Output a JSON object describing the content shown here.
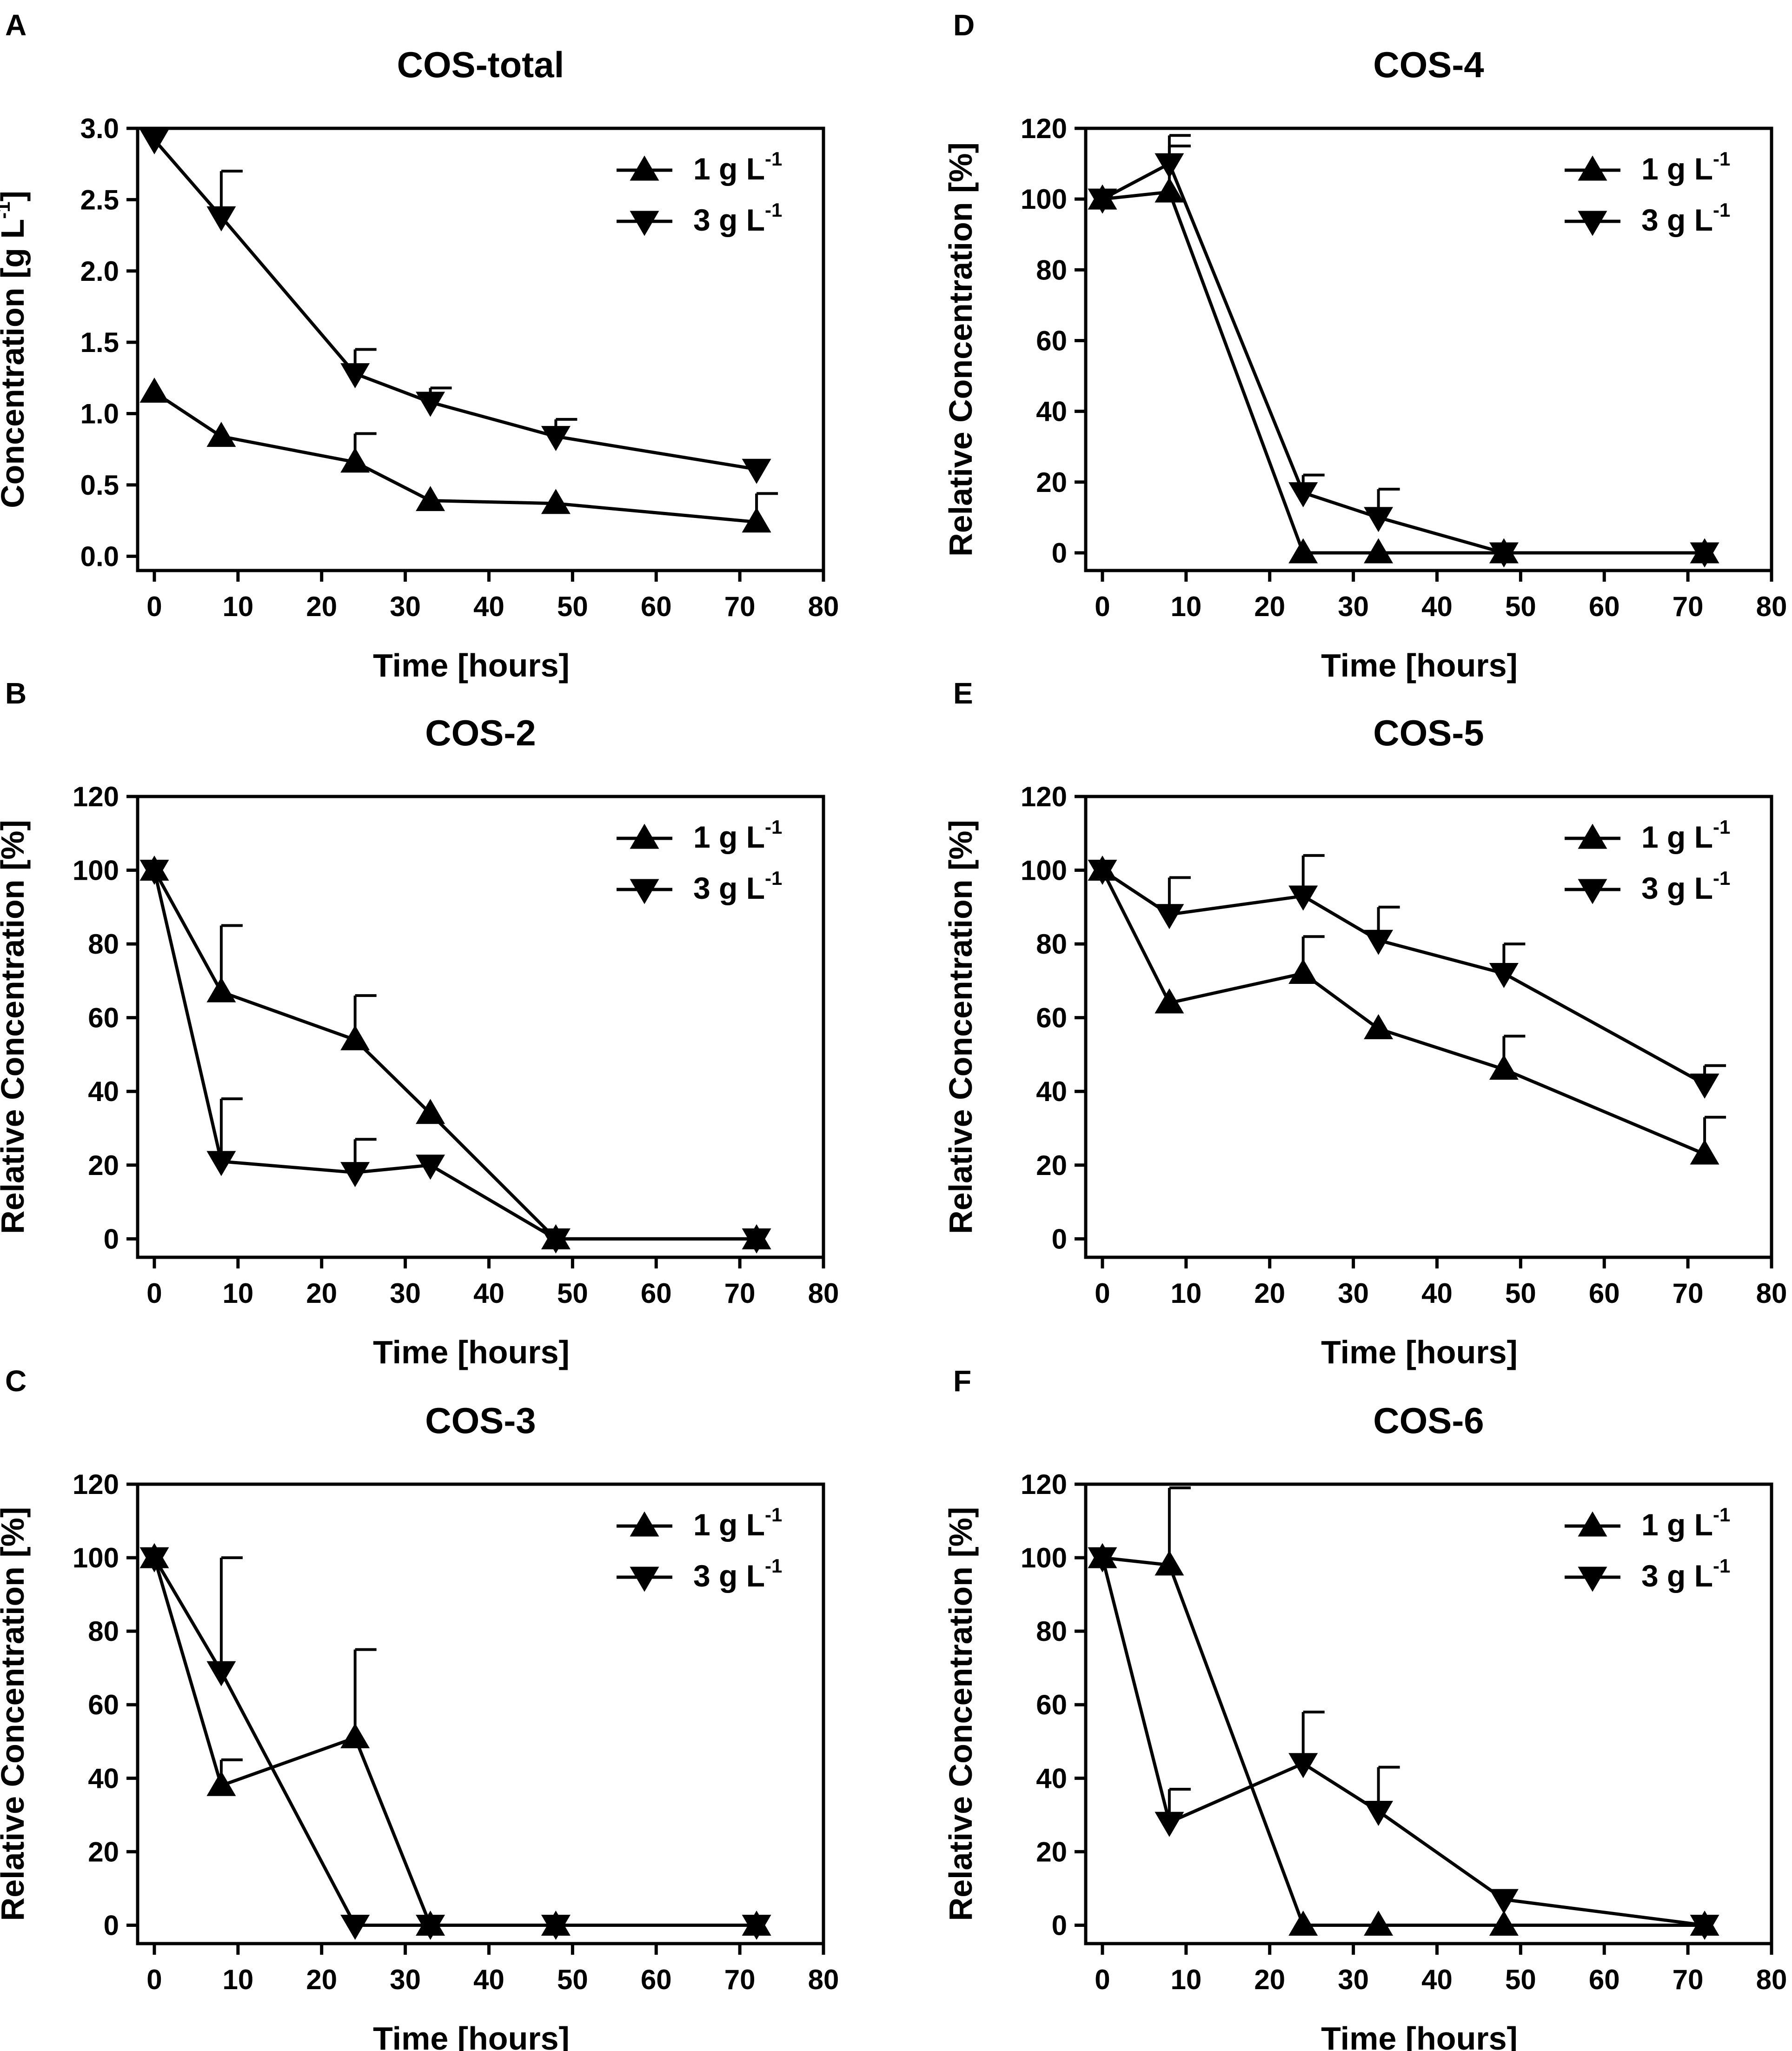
{
  "figure": {
    "series_names": [
      "1 g L",
      "3 g L"
    ],
    "series_sup": "-1",
    "colors": {
      "axis": "#000000",
      "background": "#ffffff"
    },
    "markers": [
      "triangle-up",
      "triangle-down"
    ]
  },
  "chart_data": [
    {
      "letter": "A",
      "type": "line",
      "title": "COS-total",
      "xlabel": "Time [hours]",
      "ylabel_main": "Concentration [g L",
      "ylabel_sup": "-1",
      "ylabel_end": "]",
      "xlim": [
        -2,
        80
      ],
      "ylim": [
        -0.1,
        3.0
      ],
      "xticks": [
        0,
        10,
        20,
        30,
        40,
        50,
        60,
        70,
        80
      ],
      "xtick_labels": [
        "0",
        "10",
        "20",
        "30",
        "40",
        "50",
        "60",
        "70",
        "80"
      ],
      "yticks": [
        0.0,
        0.5,
        1.0,
        1.5,
        2.0,
        2.5,
        3.0
      ],
      "ytick_labels": [
        "0.0",
        "0.5",
        "1.0",
        "1.5",
        "2.0",
        "2.5",
        "3.0"
      ],
      "series": [
        {
          "name": "1 g L-1",
          "marker": "triangle-up",
          "x": [
            0,
            8,
            24,
            33,
            48,
            72
          ],
          "y": [
            1.15,
            0.84,
            0.66,
            0.39,
            0.37,
            0.24
          ],
          "err": [
            0,
            0,
            0.2,
            0,
            0,
            0.2
          ]
        },
        {
          "name": "3 g L-1",
          "marker": "triangle-down",
          "x": [
            0,
            8,
            24,
            33,
            48,
            72
          ],
          "y": [
            2.92,
            2.38,
            1.28,
            1.08,
            0.84,
            0.61
          ],
          "err": [
            0,
            0.32,
            0.17,
            0.1,
            0.12,
            0
          ]
        }
      ]
    },
    {
      "letter": "B",
      "type": "line",
      "title": "COS-2",
      "xlabel": "Time [hours]",
      "ylabel_main": "Relative Concentration [%]",
      "ylabel_sup": "",
      "ylabel_end": "",
      "xlim": [
        -2,
        80
      ],
      "ylim": [
        -5,
        120
      ],
      "xticks": [
        0,
        10,
        20,
        30,
        40,
        50,
        60,
        70,
        80
      ],
      "xtick_labels": [
        "0",
        "10",
        "20",
        "30",
        "40",
        "50",
        "60",
        "70",
        "80"
      ],
      "yticks": [
        0,
        20,
        40,
        60,
        80,
        100,
        120
      ],
      "ytick_labels": [
        "0",
        "20",
        "40",
        "60",
        "80",
        "100",
        "120"
      ],
      "series": [
        {
          "name": "1 g L-1",
          "marker": "triangle-up",
          "x": [
            0,
            8,
            24,
            33,
            48,
            72
          ],
          "y": [
            100,
            67,
            54,
            34,
            0,
            0
          ],
          "err": [
            0,
            18,
            12,
            0,
            0,
            0
          ]
        },
        {
          "name": "3 g L-1",
          "marker": "triangle-down",
          "x": [
            0,
            8,
            24,
            33,
            48,
            72
          ],
          "y": [
            100,
            21,
            18,
            20,
            0,
            0
          ],
          "err": [
            0,
            17,
            9,
            0,
            0,
            0
          ]
        }
      ]
    },
    {
      "letter": "C",
      "type": "line",
      "title": "COS-3",
      "xlabel": "Time [hours]",
      "ylabel_main": "Relative Concentration [%]",
      "ylabel_sup": "",
      "ylabel_end": "",
      "xlim": [
        -2,
        80
      ],
      "ylim": [
        -5,
        120
      ],
      "xticks": [
        0,
        10,
        20,
        30,
        40,
        50,
        60,
        70,
        80
      ],
      "xtick_labels": [
        "0",
        "10",
        "20",
        "30",
        "40",
        "50",
        "60",
        "70",
        "80"
      ],
      "yticks": [
        0,
        20,
        40,
        60,
        80,
        100,
        120
      ],
      "ytick_labels": [
        "0",
        "20",
        "40",
        "60",
        "80",
        "100",
        "120"
      ],
      "series": [
        {
          "name": "1 g L-1",
          "marker": "triangle-up",
          "x": [
            0,
            8,
            24,
            33,
            48,
            72
          ],
          "y": [
            100,
            38,
            51,
            0,
            0,
            0
          ],
          "err": [
            0,
            7,
            24,
            0,
            0,
            0
          ]
        },
        {
          "name": "3 g L-1",
          "marker": "triangle-down",
          "x": [
            0,
            8,
            24,
            33,
            48,
            72
          ],
          "y": [
            100,
            69,
            0,
            0,
            0,
            0
          ],
          "err": [
            0,
            31,
            0,
            0,
            0,
            0
          ]
        }
      ]
    },
    {
      "letter": "D",
      "type": "line",
      "title": "COS-4",
      "xlabel": "Time [hours]",
      "ylabel_main": "Relative Concentration [%]",
      "ylabel_sup": "",
      "ylabel_end": "",
      "xlim": [
        -2,
        80
      ],
      "ylim": [
        -5,
        120
      ],
      "xticks": [
        0,
        10,
        20,
        30,
        40,
        50,
        60,
        70,
        80
      ],
      "xtick_labels": [
        "0",
        "10",
        "20",
        "30",
        "40",
        "50",
        "60",
        "70",
        "80"
      ],
      "yticks": [
        0,
        20,
        40,
        60,
        80,
        100,
        120
      ],
      "ytick_labels": [
        "0",
        "20",
        "40",
        "60",
        "80",
        "100",
        "120"
      ],
      "series": [
        {
          "name": "1 g L-1",
          "marker": "triangle-up",
          "x": [
            0,
            8,
            24,
            33,
            48,
            72
          ],
          "y": [
            100,
            102,
            0,
            0,
            0,
            0
          ],
          "err": [
            0,
            13,
            0,
            0,
            0,
            0
          ]
        },
        {
          "name": "3 g L-1",
          "marker": "triangle-down",
          "x": [
            0,
            8,
            24,
            33,
            48,
            72
          ],
          "y": [
            100,
            110,
            17,
            10,
            0,
            0
          ],
          "err": [
            0,
            8,
            5,
            8,
            0,
            0
          ]
        }
      ]
    },
    {
      "letter": "E",
      "type": "line",
      "title": "COS-5",
      "xlabel": "Time [hours]",
      "ylabel_main": "Relative Concentration [%]",
      "ylabel_sup": "",
      "ylabel_end": "",
      "xlim": [
        -2,
        80
      ],
      "ylim": [
        -5,
        120
      ],
      "xticks": [
        0,
        10,
        20,
        30,
        40,
        50,
        60,
        70,
        80
      ],
      "xtick_labels": [
        "0",
        "10",
        "20",
        "30",
        "40",
        "50",
        "60",
        "70",
        "80"
      ],
      "yticks": [
        0,
        20,
        40,
        60,
        80,
        100,
        120
      ],
      "ytick_labels": [
        "0",
        "20",
        "40",
        "60",
        "80",
        "100",
        "120"
      ],
      "series": [
        {
          "name": "1 g L-1",
          "marker": "triangle-up",
          "x": [
            0,
            8,
            24,
            33,
            48,
            72
          ],
          "y": [
            100,
            64,
            72,
            57,
            46,
            23
          ],
          "err": [
            0,
            0,
            10,
            0,
            9,
            10
          ]
        },
        {
          "name": "3 g L-1",
          "marker": "triangle-down",
          "x": [
            0,
            8,
            24,
            33,
            48,
            72
          ],
          "y": [
            100,
            88,
            93,
            81,
            72,
            42
          ],
          "err": [
            0,
            10,
            11,
            9,
            8,
            5
          ]
        }
      ]
    },
    {
      "letter": "F",
      "type": "line",
      "title": "COS-6",
      "xlabel": "Time [hours]",
      "ylabel_main": "Relative Concentration [%]",
      "ylabel_sup": "",
      "ylabel_end": "",
      "xlim": [
        -2,
        80
      ],
      "ylim": [
        -5,
        120
      ],
      "xticks": [
        0,
        10,
        20,
        30,
        40,
        50,
        60,
        70,
        80
      ],
      "xtick_labels": [
        "0",
        "10",
        "20",
        "30",
        "40",
        "50",
        "60",
        "70",
        "80"
      ],
      "yticks": [
        0,
        20,
        40,
        60,
        80,
        100,
        120
      ],
      "ytick_labels": [
        "0",
        "20",
        "40",
        "60",
        "80",
        "100",
        "120"
      ],
      "series": [
        {
          "name": "1 g L-1",
          "marker": "triangle-up",
          "x": [
            0,
            8,
            24,
            33,
            48,
            72
          ],
          "y": [
            100,
            98,
            0,
            0,
            0,
            0
          ],
          "err": [
            0,
            21,
            0,
            0,
            0,
            0
          ]
        },
        {
          "name": "3 g L-1",
          "marker": "triangle-down",
          "x": [
            0,
            8,
            24,
            33,
            48,
            72
          ],
          "y": [
            100,
            28,
            44,
            31,
            7,
            0
          ],
          "err": [
            0,
            9,
            14,
            12,
            0,
            0
          ]
        }
      ]
    }
  ]
}
